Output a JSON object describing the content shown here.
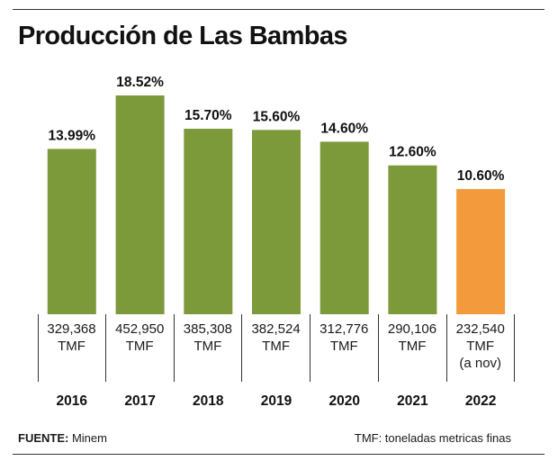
{
  "chart_data": {
    "type": "bar",
    "title": "Producción de Las Bambas",
    "categories": [
      "2016",
      "2017",
      "2018",
      "2019",
      "2020",
      "2021",
      "2022"
    ],
    "values": [
      13.99,
      18.52,
      15.7,
      15.6,
      14.6,
      12.6,
      10.6
    ],
    "value_labels": [
      "13.99%",
      "18.52%",
      "15.70%",
      "15.60%",
      "14.60%",
      "12.60%",
      "10.60%"
    ],
    "tonnage": [
      [
        "329,368",
        "TMF"
      ],
      [
        "452,950",
        "TMF"
      ],
      [
        "385,308",
        "TMF"
      ],
      [
        "382,524",
        "TMF"
      ],
      [
        "312,776",
        "TMF"
      ],
      [
        "290,106",
        "TMF"
      ],
      [
        "232,540",
        "TMF",
        "(a nov)"
      ]
    ],
    "ylim": [
      0,
      18.52
    ],
    "grid": false,
    "colors": {
      "default_bar": "#7d9a3a",
      "highlight_bar": "#f39a3c"
    },
    "highlight_index": 6
  },
  "footer": {
    "source_label": "FUENTE:",
    "source_value": " Minem",
    "note": "TMF: toneladas metricas finas"
  }
}
